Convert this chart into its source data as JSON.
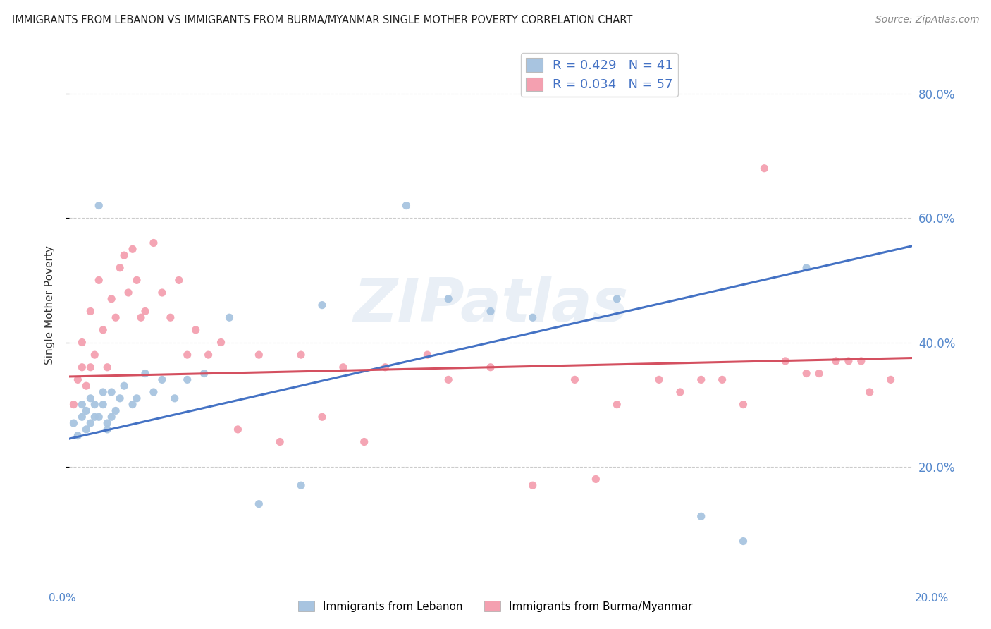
{
  "title": "IMMIGRANTS FROM LEBANON VS IMMIGRANTS FROM BURMA/MYANMAR SINGLE MOTHER POVERTY CORRELATION CHART",
  "source": "Source: ZipAtlas.com",
  "ylabel": "Single Mother Poverty",
  "yaxis_ticks_labels": [
    "20.0%",
    "40.0%",
    "60.0%",
    "80.0%"
  ],
  "yaxis_tick_values": [
    0.2,
    0.4,
    0.6,
    0.8
  ],
  "xlim": [
    0.0,
    0.2
  ],
  "ylim": [
    0.04,
    0.88
  ],
  "legend_r1": "R = 0.429   N = 41",
  "legend_r2": "R = 0.034   N = 57",
  "color_lebanon": "#a8c4e0",
  "color_burma": "#f4a0b0",
  "line_color_lebanon": "#4472c4",
  "line_color_burma": "#d45060",
  "watermark": "ZIPatlas",
  "lebanon_scatter_x": [
    0.001,
    0.002,
    0.003,
    0.003,
    0.004,
    0.004,
    0.005,
    0.005,
    0.006,
    0.006,
    0.007,
    0.007,
    0.008,
    0.008,
    0.009,
    0.009,
    0.01,
    0.01,
    0.011,
    0.012,
    0.013,
    0.015,
    0.016,
    0.018,
    0.02,
    0.022,
    0.025,
    0.028,
    0.032,
    0.038,
    0.045,
    0.055,
    0.06,
    0.08,
    0.09,
    0.1,
    0.11,
    0.13,
    0.15,
    0.16,
    0.175
  ],
  "lebanon_scatter_y": [
    0.27,
    0.25,
    0.28,
    0.3,
    0.26,
    0.29,
    0.27,
    0.31,
    0.28,
    0.3,
    0.62,
    0.28,
    0.3,
    0.32,
    0.26,
    0.27,
    0.28,
    0.32,
    0.29,
    0.31,
    0.33,
    0.3,
    0.31,
    0.35,
    0.32,
    0.34,
    0.31,
    0.34,
    0.35,
    0.44,
    0.14,
    0.17,
    0.46,
    0.62,
    0.47,
    0.45,
    0.44,
    0.47,
    0.12,
    0.08,
    0.52
  ],
  "burma_scatter_x": [
    0.001,
    0.002,
    0.003,
    0.003,
    0.004,
    0.005,
    0.005,
    0.006,
    0.007,
    0.008,
    0.009,
    0.01,
    0.011,
    0.012,
    0.013,
    0.014,
    0.015,
    0.016,
    0.017,
    0.018,
    0.02,
    0.022,
    0.024,
    0.026,
    0.028,
    0.03,
    0.033,
    0.036,
    0.04,
    0.045,
    0.05,
    0.055,
    0.06,
    0.065,
    0.07,
    0.075,
    0.085,
    0.09,
    0.1,
    0.11,
    0.12,
    0.125,
    0.13,
    0.14,
    0.145,
    0.15,
    0.155,
    0.16,
    0.165,
    0.17,
    0.175,
    0.178,
    0.182,
    0.185,
    0.188,
    0.19,
    0.195
  ],
  "burma_scatter_y": [
    0.3,
    0.34,
    0.36,
    0.4,
    0.33,
    0.36,
    0.45,
    0.38,
    0.5,
    0.42,
    0.36,
    0.47,
    0.44,
    0.52,
    0.54,
    0.48,
    0.55,
    0.5,
    0.44,
    0.45,
    0.56,
    0.48,
    0.44,
    0.5,
    0.38,
    0.42,
    0.38,
    0.4,
    0.26,
    0.38,
    0.24,
    0.38,
    0.28,
    0.36,
    0.24,
    0.36,
    0.38,
    0.34,
    0.36,
    0.17,
    0.34,
    0.18,
    0.3,
    0.34,
    0.32,
    0.34,
    0.34,
    0.3,
    0.68,
    0.37,
    0.35,
    0.35,
    0.37,
    0.37,
    0.37,
    0.32,
    0.34
  ]
}
